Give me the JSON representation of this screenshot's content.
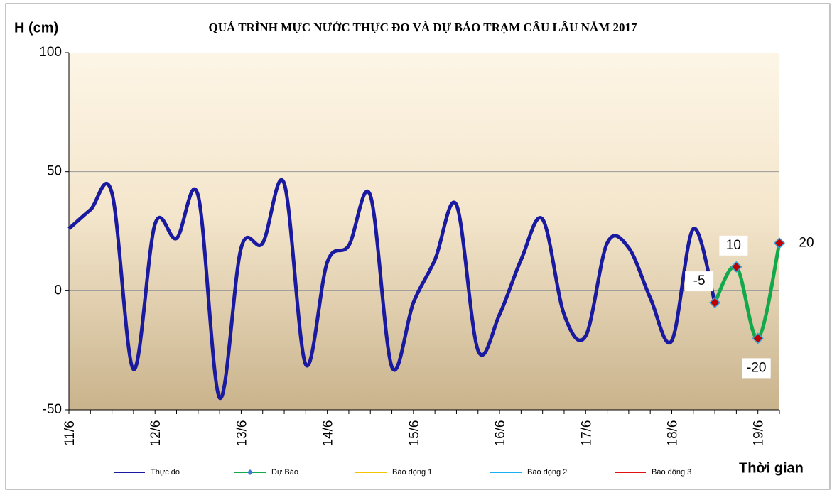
{
  "chart_data": {
    "type": "line",
    "title": "QUÁ TRÌNH MỰC NƯỚC THỰC ĐO VÀ DỰ BÁO TRẠM CÂU LÂU NĂM  2017",
    "y_label": "H (cm)",
    "x_label": "Thời gian",
    "categories": [
      "11/6",
      null,
      null,
      null,
      "12/6",
      null,
      null,
      null,
      "13/6",
      null,
      null,
      null,
      "14/6",
      null,
      null,
      null,
      "15/6",
      null,
      null,
      null,
      "16/6",
      null,
      null,
      null,
      "17/6",
      null,
      null,
      null,
      "18/6",
      null,
      null,
      null,
      "19/6",
      null
    ],
    "series": [
      {
        "name": "Thực đo",
        "color": "#1a1aa0",
        "values": [
          26,
          34,
          41,
          -33,
          28,
          22,
          40,
          -45,
          18,
          20,
          45,
          -31,
          12,
          19,
          40,
          -32,
          -5,
          13,
          36,
          -25,
          -10,
          13,
          30,
          -10,
          -19,
          20,
          18,
          -3,
          -21,
          26,
          -5,
          null,
          null,
          null
        ]
      },
      {
        "name": "Dự Báo",
        "color": "#13a84a",
        "marker_color": "#c00000",
        "values": [
          null,
          null,
          null,
          null,
          null,
          null,
          null,
          null,
          null,
          null,
          null,
          null,
          null,
          null,
          null,
          null,
          null,
          null,
          null,
          null,
          null,
          null,
          null,
          null,
          null,
          null,
          null,
          null,
          null,
          null,
          -5,
          10,
          -20,
          20
        ]
      },
      {
        "name": "Báo động 1",
        "color": "#f5c400",
        "values": [
          null,
          null,
          null,
          null,
          null,
          null,
          null,
          null,
          null,
          null,
          null,
          null,
          null,
          null,
          null,
          null,
          null,
          null,
          null,
          null,
          null,
          null,
          null,
          null,
          null,
          null,
          null,
          null,
          null,
          null,
          null,
          null,
          null,
          null
        ]
      },
      {
        "name": "Báo động 2",
        "color": "#1ab0f0",
        "values": [
          null,
          null,
          null,
          null,
          null,
          null,
          null,
          null,
          null,
          null,
          null,
          null,
          null,
          null,
          null,
          null,
          null,
          null,
          null,
          null,
          null,
          null,
          null,
          null,
          null,
          null,
          null,
          null,
          null,
          null,
          null,
          null,
          null,
          null
        ]
      },
      {
        "name": "Báo động 3",
        "color": "#e01010",
        "values": [
          null,
          null,
          null,
          null,
          null,
          null,
          null,
          null,
          null,
          null,
          null,
          null,
          null,
          null,
          null,
          null,
          null,
          null,
          null,
          null,
          null,
          null,
          null,
          null,
          null,
          null,
          null,
          null,
          null,
          null,
          null,
          null,
          null,
          null
        ]
      }
    ],
    "ylim": [
      -50,
      100
    ],
    "yticks": [
      -50,
      0,
      50,
      100
    ],
    "grid": true
  }
}
